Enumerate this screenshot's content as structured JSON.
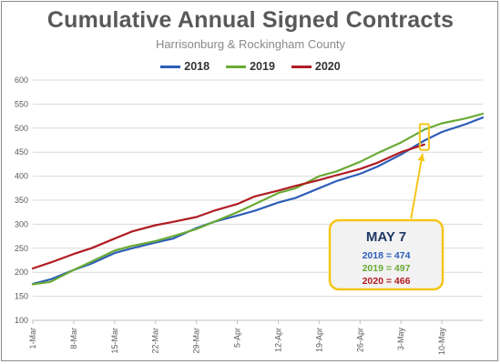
{
  "chart_data": {
    "type": "line",
    "title": "Cumulative Annual Signed Contracts",
    "subtitle": "Harrisonburg & Rockingham County",
    "xlabel": "",
    "ylabel": "",
    "ylim": [
      100,
      600
    ],
    "yticks": [
      100,
      150,
      200,
      250,
      300,
      350,
      400,
      450,
      500,
      550,
      600
    ],
    "x_start": "1-Mar",
    "x_end": "17-May",
    "xticks": [
      "1-Mar",
      "8-Mar",
      "15-Mar",
      "22-Mar",
      "29-Mar",
      "5-Apr",
      "12-Apr",
      "19-Apr",
      "26-Apr",
      "3-May",
      "10-May"
    ],
    "grid": true,
    "legend_position": "top",
    "series": [
      {
        "name": "2018",
        "color": "#2e5eb8",
        "points": [
          [
            "1-Mar",
            176
          ],
          [
            "4-Mar",
            185
          ],
          [
            "8-Mar",
            205
          ],
          [
            "11-Mar",
            218
          ],
          [
            "15-Mar",
            240
          ],
          [
            "18-Mar",
            250
          ],
          [
            "22-Mar",
            262
          ],
          [
            "25-Mar",
            270
          ],
          [
            "29-Mar",
            292
          ],
          [
            "1-Apr",
            305
          ],
          [
            "5-Apr",
            318
          ],
          [
            "8-Apr",
            328
          ],
          [
            "12-Apr",
            345
          ],
          [
            "15-Apr",
            355
          ],
          [
            "19-Apr",
            375
          ],
          [
            "22-Apr",
            390
          ],
          [
            "26-Apr",
            405
          ],
          [
            "29-Apr",
            420
          ],
          [
            "3-May",
            445
          ],
          [
            "7-May",
            474
          ],
          [
            "10-May",
            492
          ],
          [
            "14-May",
            508
          ],
          [
            "17-May",
            522
          ]
        ]
      },
      {
        "name": "2019",
        "color": "#6aaa35",
        "points": [
          [
            "1-Mar",
            175
          ],
          [
            "4-Mar",
            180
          ],
          [
            "8-Mar",
            205
          ],
          [
            "11-Mar",
            222
          ],
          [
            "15-Mar",
            245
          ],
          [
            "18-Mar",
            255
          ],
          [
            "22-Mar",
            265
          ],
          [
            "25-Mar",
            275
          ],
          [
            "29-Mar",
            290
          ],
          [
            "1-Apr",
            305
          ],
          [
            "5-Apr",
            325
          ],
          [
            "8-Apr",
            342
          ],
          [
            "12-Apr",
            365
          ],
          [
            "15-Apr",
            375
          ],
          [
            "19-Apr",
            400
          ],
          [
            "22-Apr",
            410
          ],
          [
            "26-Apr",
            430
          ],
          [
            "29-Apr",
            448
          ],
          [
            "3-May",
            470
          ],
          [
            "7-May",
            497
          ],
          [
            "10-May",
            510
          ],
          [
            "14-May",
            520
          ],
          [
            "17-May",
            530
          ]
        ]
      },
      {
        "name": "2020",
        "color": "#b01c22",
        "points": [
          [
            "1-Mar",
            208
          ],
          [
            "4-Mar",
            220
          ],
          [
            "8-Mar",
            238
          ],
          [
            "11-Mar",
            250
          ],
          [
            "15-Mar",
            270
          ],
          [
            "18-Mar",
            285
          ],
          [
            "22-Mar",
            298
          ],
          [
            "25-Mar",
            305
          ],
          [
            "29-Mar",
            315
          ],
          [
            "1-Apr",
            328
          ],
          [
            "5-Apr",
            342
          ],
          [
            "8-Apr",
            358
          ],
          [
            "12-Apr",
            370
          ],
          [
            "15-Apr",
            380
          ],
          [
            "19-Apr",
            392
          ],
          [
            "22-Apr",
            402
          ],
          [
            "26-Apr",
            415
          ],
          [
            "29-Apr",
            428
          ],
          [
            "3-May",
            450
          ],
          [
            "7-May",
            466
          ]
        ]
      }
    ],
    "annotation": {
      "at": "7-May",
      "title": "MAY 7",
      "lines": [
        {
          "text": "2018 = 474",
          "color": "#2e5eb8"
        },
        {
          "text": "2019 = 497",
          "color": "#6aaa35"
        },
        {
          "text": "2020 = 466",
          "color": "#b01c22"
        }
      ],
      "highlight_color": "#f5c518"
    }
  }
}
